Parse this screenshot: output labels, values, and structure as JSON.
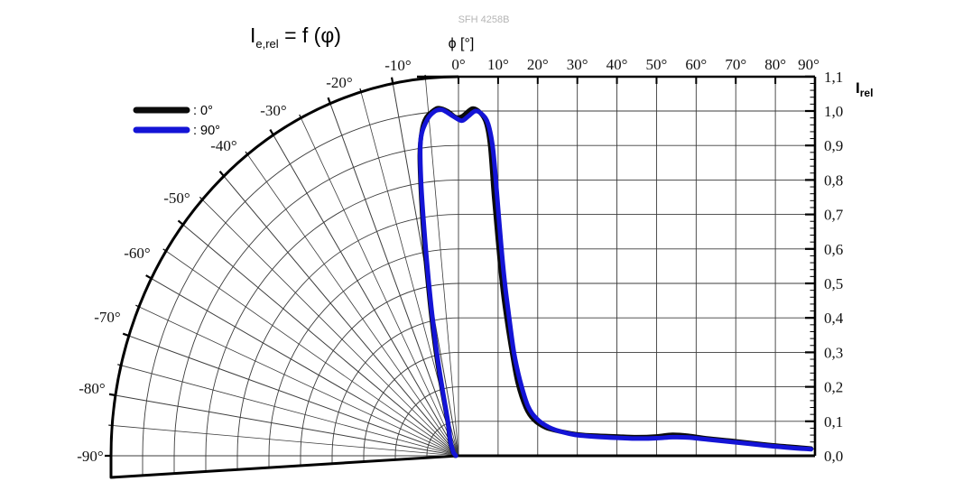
{
  "watermark": "SFH 4258B",
  "title": {
    "sym": "I",
    "sub": "e,rel",
    "rest": " = f (φ)"
  },
  "x_axis_label": "ϕ [°]",
  "y_axis_label": {
    "sym": "I",
    "sub": "rel"
  },
  "legend": [
    {
      "label": ": 0°",
      "color": "#0a0a0a"
    },
    {
      "label": ": 90°",
      "color": "#1414d6"
    }
  ],
  "polar_axis": {
    "labels": [
      "-10°",
      "-20°",
      "-30°",
      "-40°",
      "-50°",
      "-60°",
      "-70°",
      "-80°",
      "-90°"
    ]
  },
  "top_axis": {
    "labels": [
      "0°",
      "10°",
      "20°",
      "30°",
      "40°",
      "50°",
      "60°",
      "70°",
      "80°",
      "90°"
    ]
  },
  "right_axis": {
    "labels": [
      "1,1",
      "1,0",
      "0,9",
      "0,8",
      "0,7",
      "0,6",
      "0,5",
      "0,4",
      "0,3",
      "0,2",
      "0,1",
      "0,0"
    ]
  },
  "colors": {
    "curve_0deg": "#0a0a0a",
    "curve_90deg": "#1414d6",
    "grid": "#3c3c3c",
    "frame": "#000000"
  },
  "chart_data": {
    "type": "line",
    "title": "Ie,rel = f (φ)",
    "xlabel": "ϕ [°]",
    "ylabel": "Irel",
    "layout": "left half: polar fan −90°..0° (radius = Irel); right half: cartesian 0°..90°",
    "x_range_deg": [
      -90,
      90
    ],
    "y_range": [
      0.0,
      1.1
    ],
    "y_tick_step": 0.1,
    "x_tick_step_deg": 10,
    "grid": true,
    "legend_position": "top-left",
    "series": [
      {
        "name": "0°",
        "color": "#0a0a0a",
        "points": [
          [
            -90,
            0.01
          ],
          [
            -60,
            0.02
          ],
          [
            -45,
            0.03
          ],
          [
            -35,
            0.045
          ],
          [
            -30,
            0.055
          ],
          [
            -25,
            0.07
          ],
          [
            -22,
            0.082
          ],
          [
            -19,
            0.105
          ],
          [
            -17,
            0.14
          ],
          [
            -15,
            0.21
          ],
          [
            -13.5,
            0.3
          ],
          [
            -12,
            0.41
          ],
          [
            -11,
            0.5
          ],
          [
            -10,
            0.62
          ],
          [
            -9,
            0.75
          ],
          [
            -8,
            0.88
          ],
          [
            -7,
            0.95
          ],
          [
            -6,
            0.985
          ],
          [
            -4.5,
            1.005
          ],
          [
            -3.5,
            1.01
          ],
          [
            -2,
            1.0
          ],
          [
            -0.5,
            0.982
          ],
          [
            1,
            0.985
          ],
          [
            3.5,
            1.007
          ],
          [
            5.5,
            0.995
          ],
          [
            7,
            0.965
          ],
          [
            8,
            0.9
          ],
          [
            9,
            0.75
          ],
          [
            10,
            0.62
          ],
          [
            11,
            0.5
          ],
          [
            12,
            0.41
          ],
          [
            13.5,
            0.3
          ],
          [
            15,
            0.21
          ],
          [
            17,
            0.14
          ],
          [
            19,
            0.105
          ],
          [
            22,
            0.082
          ],
          [
            26,
            0.07
          ],
          [
            30,
            0.062
          ],
          [
            35,
            0.058
          ],
          [
            40,
            0.056
          ],
          [
            45,
            0.054
          ],
          [
            50,
            0.056
          ],
          [
            54,
            0.061
          ],
          [
            58,
            0.058
          ],
          [
            63,
            0.05
          ],
          [
            70,
            0.042
          ],
          [
            78,
            0.032
          ],
          [
            84,
            0.026
          ],
          [
            89,
            0.021
          ]
        ]
      },
      {
        "name": "90°",
        "color": "#1414d6",
        "points": [
          [
            -90,
            0.008
          ],
          [
            -60,
            0.018
          ],
          [
            -45,
            0.027
          ],
          [
            -35,
            0.042
          ],
          [
            -30,
            0.052
          ],
          [
            -25,
            0.066
          ],
          [
            -21,
            0.085
          ],
          [
            -18.5,
            0.105
          ],
          [
            -16.5,
            0.14
          ],
          [
            -14.5,
            0.21
          ],
          [
            -13,
            0.3
          ],
          [
            -11.5,
            0.42
          ],
          [
            -10.5,
            0.52
          ],
          [
            -9.5,
            0.65
          ],
          [
            -8.5,
            0.8
          ],
          [
            -7.5,
            0.92
          ],
          [
            -6,
            0.975
          ],
          [
            -4.5,
            1.0
          ],
          [
            -3,
            1.005
          ],
          [
            -1,
            0.985
          ],
          [
            0.8,
            0.972
          ],
          [
            2.5,
            0.985
          ],
          [
            4.3,
            1.0
          ],
          [
            6,
            0.99
          ],
          [
            7.5,
            0.962
          ],
          [
            8.7,
            0.89
          ],
          [
            9.7,
            0.76
          ],
          [
            10.7,
            0.62
          ],
          [
            11.7,
            0.5
          ],
          [
            12.7,
            0.41
          ],
          [
            14,
            0.3
          ],
          [
            15.5,
            0.22
          ],
          [
            17.5,
            0.145
          ],
          [
            19.8,
            0.107
          ],
          [
            22.8,
            0.083
          ],
          [
            26.5,
            0.068
          ],
          [
            30,
            0.06
          ],
          [
            35,
            0.055
          ],
          [
            40,
            0.052
          ],
          [
            45,
            0.05
          ],
          [
            50,
            0.051
          ],
          [
            54,
            0.054
          ],
          [
            58,
            0.053
          ],
          [
            63,
            0.047
          ],
          [
            70,
            0.039
          ],
          [
            78,
            0.029
          ],
          [
            84,
            0.023
          ],
          [
            89,
            0.019
          ]
        ]
      }
    ]
  }
}
